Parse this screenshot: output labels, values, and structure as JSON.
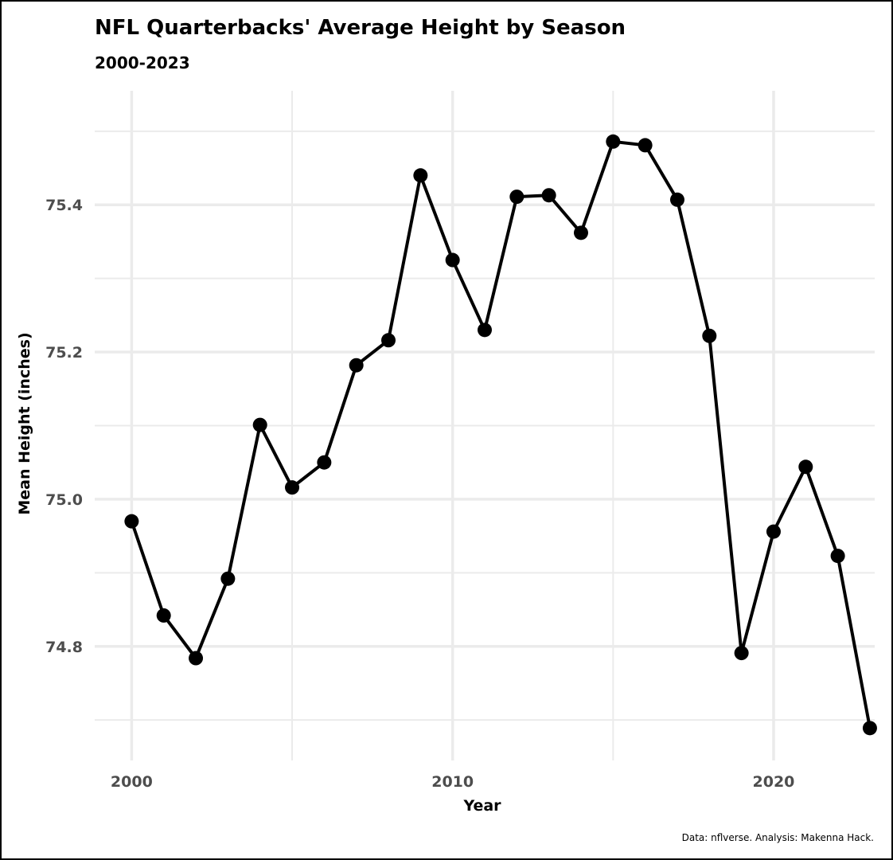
{
  "chart_data": {
    "type": "line",
    "title": "NFL Quarterbacks' Average Height by Season",
    "subtitle": "2000-2023",
    "xlabel": "Year",
    "ylabel": "Mean Height (inches)",
    "caption": "Data: nflverse. Analysis: Makenna Hack.",
    "xlim": [
      1998.85,
      2023.15
    ],
    "ylim": [
      74.645,
      75.555
    ],
    "x_major_ticks": [
      2000,
      2010,
      2020
    ],
    "x_minor_ticks": [
      2005,
      2015
    ],
    "x_tick_labels": [
      "2000",
      "2010",
      "2020"
    ],
    "y_major_ticks": [
      74.8,
      75.0,
      75.2,
      75.4
    ],
    "y_minor_ticks": [
      74.7,
      74.9,
      75.1,
      75.3,
      75.5
    ],
    "y_tick_labels": [
      "74.8",
      "75.0",
      "75.2",
      "75.4"
    ],
    "grid": true,
    "legend": "none",
    "series": [
      {
        "name": "Mean Height",
        "color": "#000000",
        "x": [
          2000,
          2001,
          2002,
          2003,
          2004,
          2005,
          2006,
          2007,
          2008,
          2009,
          2010,
          2011,
          2012,
          2013,
          2014,
          2015,
          2016,
          2017,
          2018,
          2019,
          2020,
          2021,
          2022,
          2023
        ],
        "values": [
          74.97,
          74.842,
          74.784,
          74.892,
          75.101,
          75.016,
          75.05,
          75.182,
          75.216,
          75.44,
          75.325,
          75.23,
          75.411,
          75.413,
          75.362,
          75.486,
          75.481,
          75.407,
          75.222,
          74.791,
          74.956,
          75.044,
          74.923,
          74.689
        ]
      }
    ]
  }
}
